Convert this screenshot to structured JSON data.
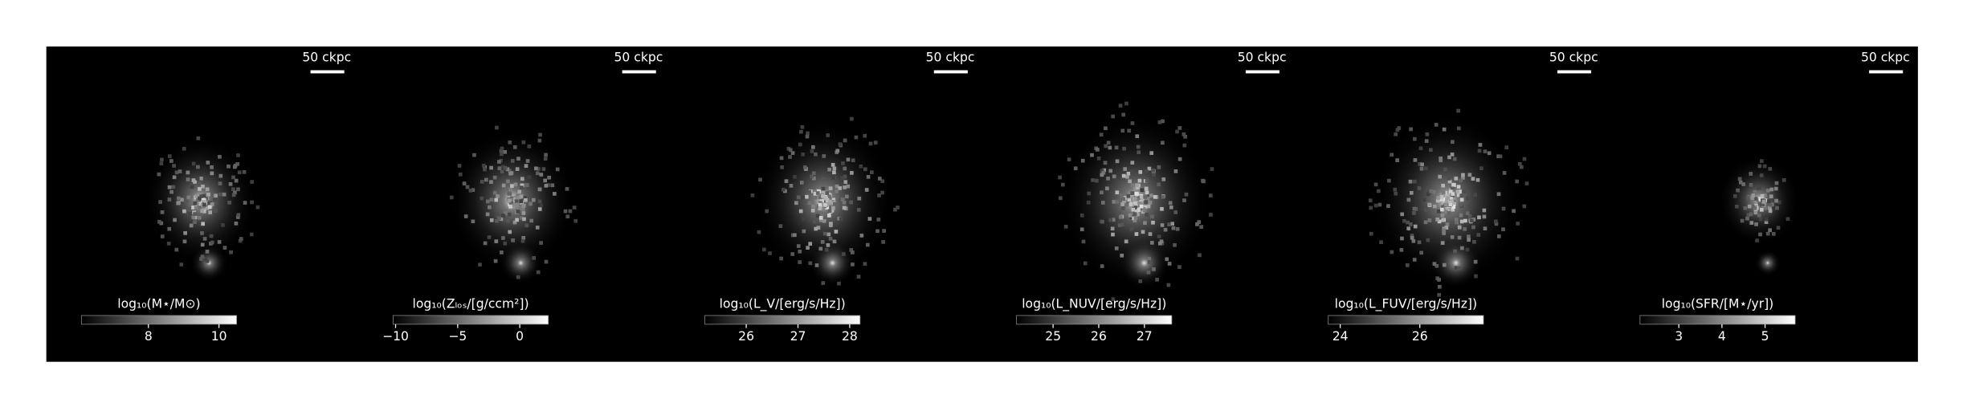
{
  "panels": [
    {
      "scale_label": "50 ckpc",
      "colorbar": {
        "label": "log₁₀(M⋆/M⊙)",
        "lim": [
          6.1,
          10.5
        ],
        "ticks": [
          8,
          10
        ]
      }
    },
    {
      "scale_label": "50 ckpc",
      "colorbar": {
        "label": "log₁₀(Zₗₒₛ/[g/ccm²])",
        "lim": [
          -10.2,
          2.3
        ],
        "ticks": [
          {
            "value": -10,
            "label": "−10"
          },
          {
            "value": -5,
            "label": "−5"
          },
          0
        ]
      }
    },
    {
      "scale_label": "50 ckpc",
      "colorbar": {
        "label": "log₁₀(L_V/[erg/s/Hz])",
        "lim": [
          25.2,
          28.2
        ],
        "ticks": [
          26,
          27,
          28
        ]
      }
    },
    {
      "scale_label": "50 ckpc",
      "colorbar": {
        "label": "log₁₀(L_NUV/[erg/s/Hz])",
        "lim": [
          24.2,
          27.6
        ],
        "ticks": [
          25,
          26,
          27
        ]
      }
    },
    {
      "scale_label": "50 ckpc",
      "colorbar": {
        "label": "log₁₀(L_FUV/[erg/s/Hz])",
        "lim": [
          23.7,
          27.6
        ],
        "ticks": [
          24,
          26
        ]
      }
    },
    {
      "scale_label": "50 ckpc",
      "colorbar": {
        "label": "log₁₀(SFR/[M⋆/yr])",
        "lim": [
          2.1,
          5.7
        ],
        "ticks": [
          3,
          4,
          5
        ]
      }
    }
  ]
}
